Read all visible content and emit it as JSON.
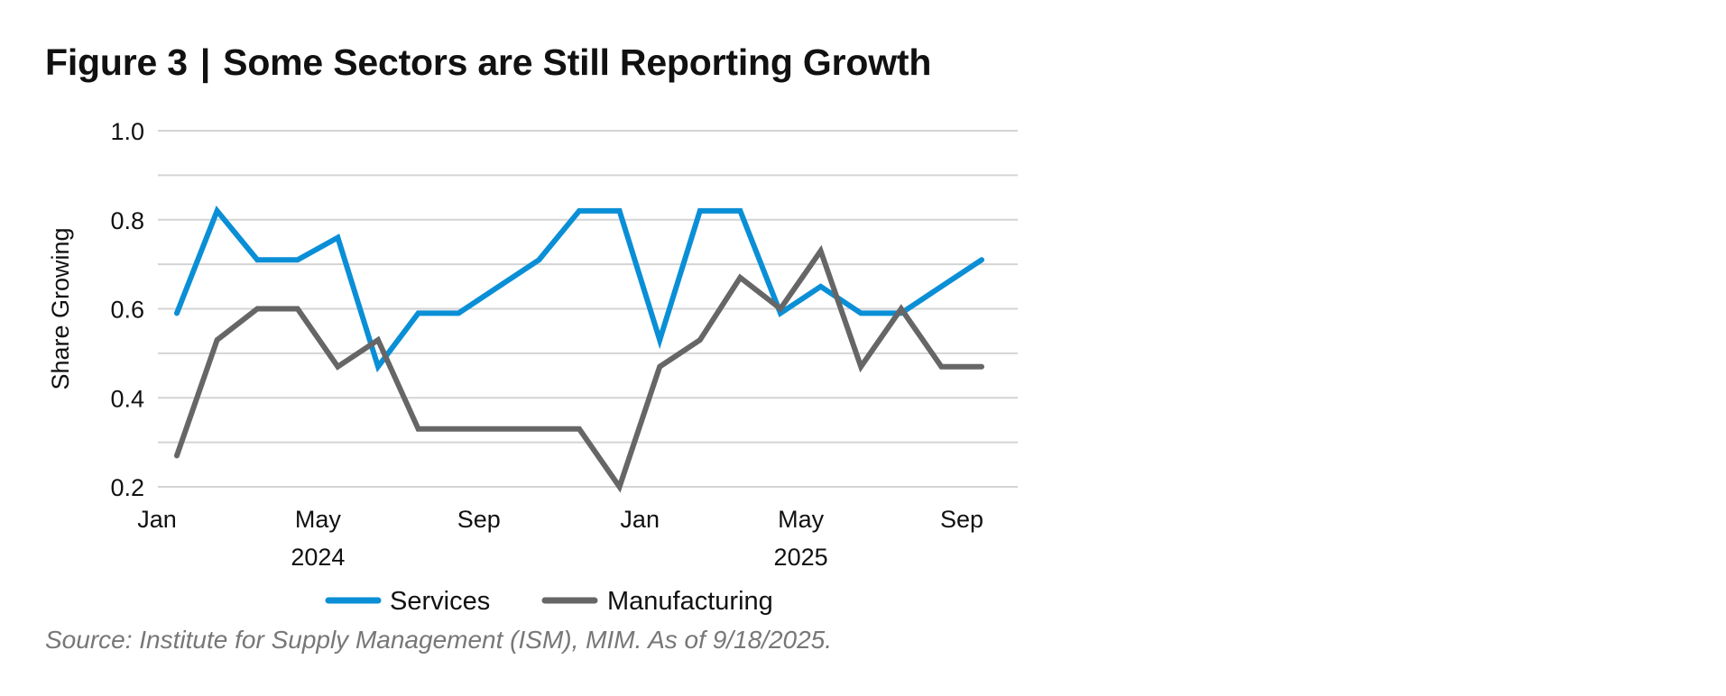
{
  "header": {
    "figure_label": "Figure 3",
    "separator": "|",
    "title": "Some Sectors are Still Reporting Growth"
  },
  "footer": {
    "source": "Source: Institute for Supply Management (ISM), MIM. As of 9/18/2025."
  },
  "chart_data": {
    "type": "line",
    "title": "Some Sectors are Still Reporting Growth",
    "xlabel": "",
    "ylabel": "Share Growing",
    "ylim": [
      0.2,
      1.0
    ],
    "yticks": [
      0.2,
      0.4,
      0.6,
      0.8,
      1.0
    ],
    "ytick_labels": [
      "0.2",
      "0.4",
      "0.6",
      "0.8",
      "1.0"
    ],
    "gridlines": [
      0.2,
      0.3,
      0.4,
      0.5,
      0.6,
      0.7,
      0.8,
      0.9,
      1.0
    ],
    "grid": true,
    "legend_position": "bottom",
    "x": [
      "2024-01",
      "2024-02",
      "2024-03",
      "2024-04",
      "2024-05",
      "2024-06",
      "2024-07",
      "2024-08",
      "2024-09",
      "2024-10",
      "2024-11",
      "2024-12",
      "2025-01",
      "2025-02",
      "2025-03",
      "2025-04",
      "2025-05",
      "2025-06",
      "2025-07",
      "2025-08",
      "2025-09"
    ],
    "xtick_labels": [
      {
        "x": "2024-01",
        "label": "Jan"
      },
      {
        "x": "2024-05",
        "label": "May"
      },
      {
        "x": "2024-09",
        "label": "Sep"
      },
      {
        "x": "2025-01",
        "label": "Jan"
      },
      {
        "x": "2025-05",
        "label": "May"
      },
      {
        "x": "2025-09",
        "label": "Sep"
      }
    ],
    "year_labels": [
      {
        "x": "2024-05",
        "label": "2024"
      },
      {
        "x": "2025-05",
        "label": "2025"
      }
    ],
    "series": [
      {
        "name": "Services",
        "color": "#0a8fd6",
        "values": [
          0.59,
          0.82,
          0.71,
          0.71,
          0.76,
          0.47,
          0.59,
          0.59,
          0.65,
          0.71,
          0.82,
          0.82,
          0.53,
          0.82,
          0.82,
          0.59,
          0.65,
          0.59,
          0.59,
          0.65,
          0.71
        ]
      },
      {
        "name": "Manufacturing",
        "color": "#666666",
        "values": [
          0.27,
          0.53,
          0.6,
          0.6,
          0.47,
          0.53,
          0.33,
          0.33,
          0.33,
          0.33,
          0.33,
          0.2,
          0.47,
          0.53,
          0.67,
          0.6,
          0.73,
          0.47,
          0.6,
          0.47,
          0.47
        ]
      }
    ]
  }
}
